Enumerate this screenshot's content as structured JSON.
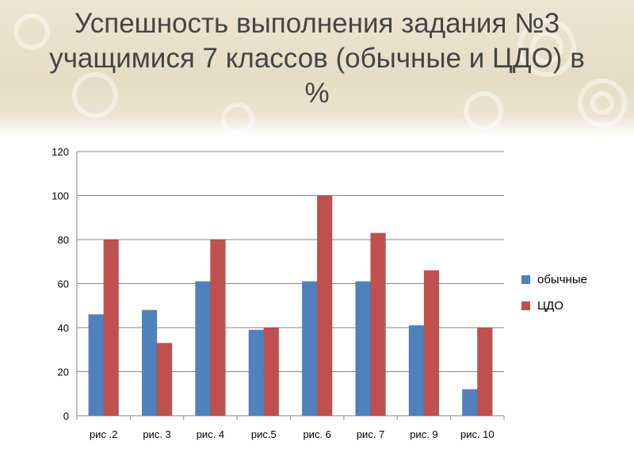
{
  "title_line1": "Успешность выполнения задания №3",
  "title_line2": "учащимися 7 классов (обычные и ЦДО) в",
  "title_line3": "%",
  "chart_data": {
    "type": "bar",
    "title": "Успешность выполнения задания №3 учащимися 7 классов (обычные и ЦДО) в %",
    "categories": [
      "рис .2",
      "рис. 3",
      "рис. 4",
      "рис.5",
      "рис. 6",
      "рис. 7",
      "рис. 9",
      "рис. 10"
    ],
    "series": [
      {
        "name": "обычные",
        "color": "#4f81bd",
        "values": [
          46,
          48,
          61,
          39,
          61,
          61,
          41,
          12
        ]
      },
      {
        "name": "ЦДО",
        "color": "#c0504d",
        "values": [
          80,
          33,
          80,
          40,
          100,
          83,
          66,
          40
        ]
      }
    ],
    "yticks": [
      0,
      20,
      40,
      60,
      80,
      100,
      120
    ],
    "ylim": [
      0,
      120
    ],
    "grid": true,
    "legend_position": "right"
  }
}
